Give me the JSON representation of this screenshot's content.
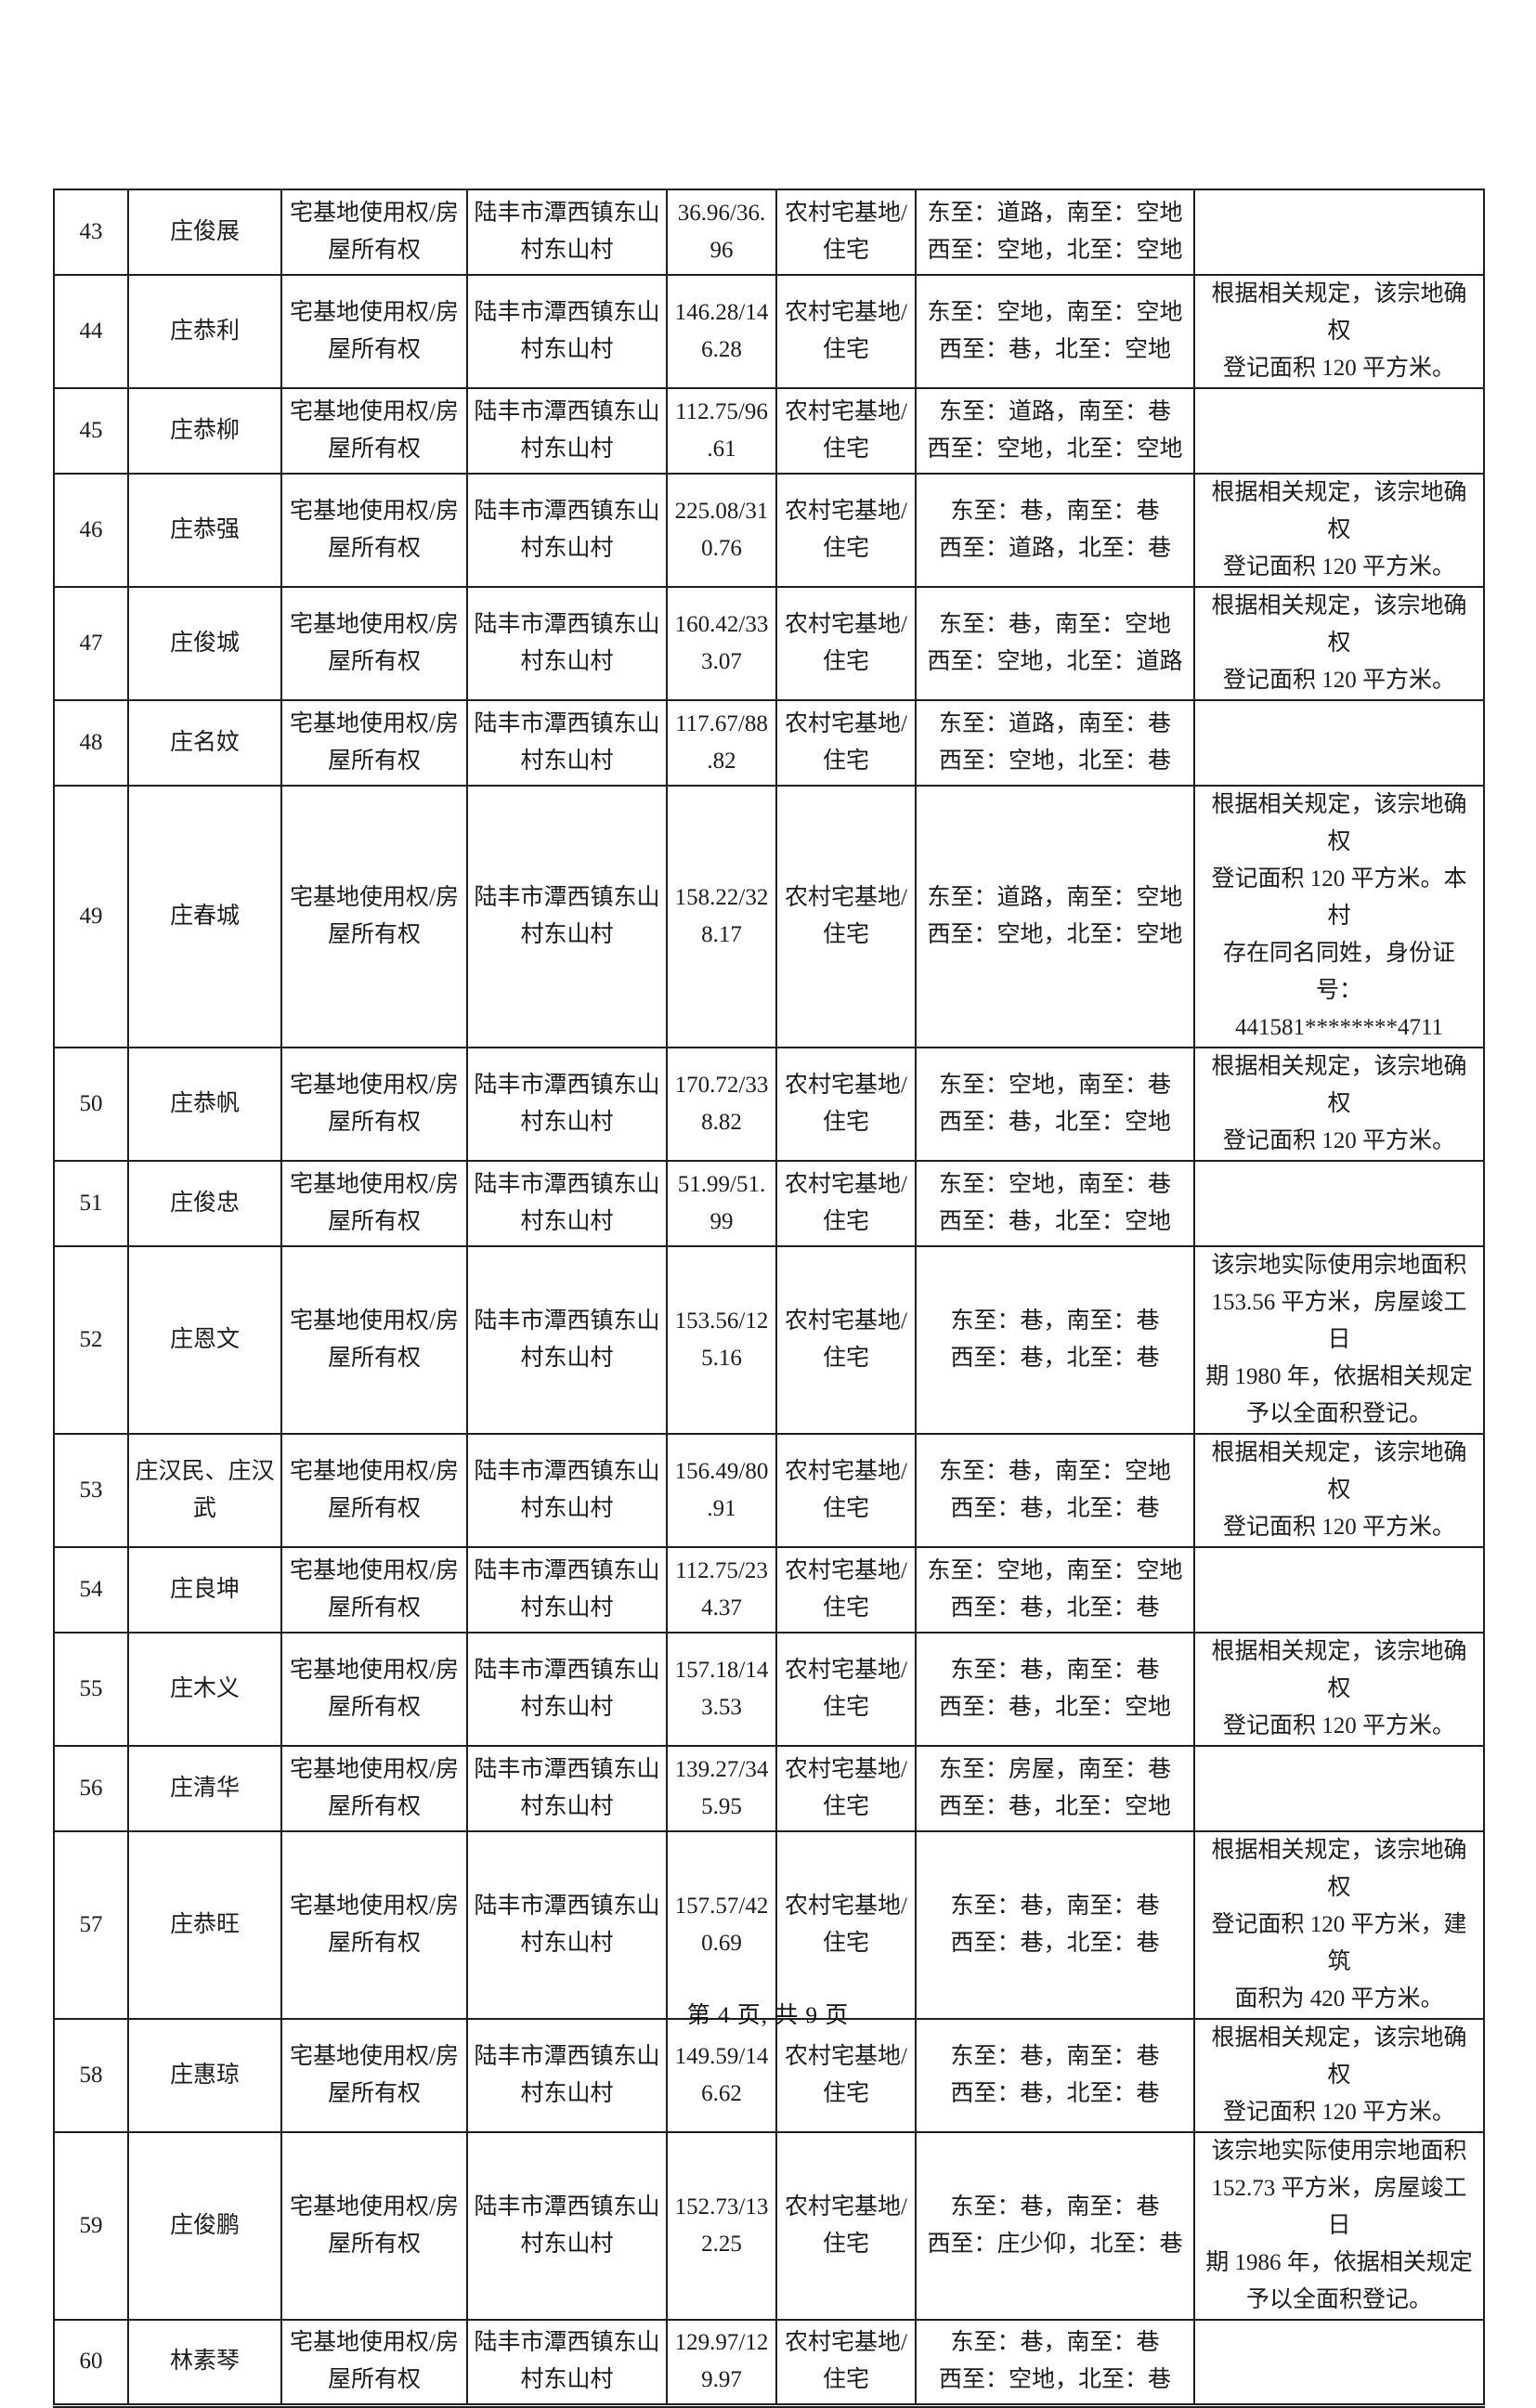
{
  "document": {
    "footer": "第 4 页, 共 9 页"
  },
  "rows": [
    {
      "no": "43",
      "name": "庄俊展",
      "right_type": "宅基地使用权/房\n屋所有权",
      "location": "陆丰市潭西镇东山\n村东山村",
      "area": "36.96/36.\n96",
      "land_use": "农村宅基地/\n住宅",
      "boundaries": "东至：道路，南至：空地\n西至：空地，北至：空地",
      "remark": ""
    },
    {
      "no": "44",
      "name": "庄恭利",
      "right_type": "宅基地使用权/房\n屋所有权",
      "location": "陆丰市潭西镇东山\n村东山村",
      "area": "146.28/14\n6.28",
      "land_use": "农村宅基地/\n住宅",
      "boundaries": "东至：空地，南至：空地\n西至：巷，北至：空地",
      "remark": "根据相关规定，该宗地确权\n登记面积 120 平方米。"
    },
    {
      "no": "45",
      "name": "庄恭柳",
      "right_type": "宅基地使用权/房\n屋所有权",
      "location": "陆丰市潭西镇东山\n村东山村",
      "area": "112.75/96\n.61",
      "land_use": "农村宅基地/\n住宅",
      "boundaries": "东至：道路，南至：巷\n西至：空地，北至：空地",
      "remark": ""
    },
    {
      "no": "46",
      "name": "庄恭强",
      "right_type": "宅基地使用权/房\n屋所有权",
      "location": "陆丰市潭西镇东山\n村东山村",
      "area": "225.08/31\n0.76",
      "land_use": "农村宅基地/\n住宅",
      "boundaries": "东至：巷，南至：巷\n西至：道路，北至：巷",
      "remark": "根据相关规定，该宗地确权\n登记面积 120 平方米。"
    },
    {
      "no": "47",
      "name": "庄俊城",
      "right_type": "宅基地使用权/房\n屋所有权",
      "location": "陆丰市潭西镇东山\n村东山村",
      "area": "160.42/33\n3.07",
      "land_use": "农村宅基地/\n住宅",
      "boundaries": "东至：巷，南至：空地\n西至：空地，北至：道路",
      "remark": "根据相关规定，该宗地确权\n登记面积 120 平方米。"
    },
    {
      "no": "48",
      "name": "庄名妏",
      "right_type": "宅基地使用权/房\n屋所有权",
      "location": "陆丰市潭西镇东山\n村东山村",
      "area": "117.67/88\n.82",
      "land_use": "农村宅基地/\n住宅",
      "boundaries": "东至：道路，南至：巷\n西至：空地，北至：巷",
      "remark": ""
    },
    {
      "no": "49",
      "name": "庄春城",
      "right_type": "宅基地使用权/房\n屋所有权",
      "location": "陆丰市潭西镇东山\n村东山村",
      "area": "158.22/32\n8.17",
      "land_use": "农村宅基地/\n住宅",
      "boundaries": "东至：道路，南至：空地\n西至：空地，北至：空地",
      "remark": "根据相关规定，该宗地确权\n登记面积 120 平方米。本村\n存在同名同姓，身份证号：\n441581********4711"
    },
    {
      "no": "50",
      "name": "庄恭帆",
      "right_type": "宅基地使用权/房\n屋所有权",
      "location": "陆丰市潭西镇东山\n村东山村",
      "area": "170.72/33\n8.82",
      "land_use": "农村宅基地/\n住宅",
      "boundaries": "东至：空地，南至：巷\n西至：巷，北至：空地",
      "remark": "根据相关规定，该宗地确权\n登记面积 120 平方米。"
    },
    {
      "no": "51",
      "name": "庄俊忠",
      "right_type": "宅基地使用权/房\n屋所有权",
      "location": "陆丰市潭西镇东山\n村东山村",
      "area": "51.99/51.\n99",
      "land_use": "农村宅基地/\n住宅",
      "boundaries": "东至：空地，南至：巷\n西至：巷，北至：空地",
      "remark": ""
    },
    {
      "no": "52",
      "name": "庄恩文",
      "right_type": "宅基地使用权/房\n屋所有权",
      "location": "陆丰市潭西镇东山\n村东山村",
      "area": "153.56/12\n5.16",
      "land_use": "农村宅基地/\n住宅",
      "boundaries": "东至：巷，南至：巷\n西至：巷，北至：巷",
      "remark": "该宗地实际使用宗地面积\n153.56 平方米，房屋竣工日\n期 1980 年，依据相关规定\n予以全面积登记。"
    },
    {
      "no": "53",
      "name": "庄汉民、庄汉\n武",
      "right_type": "宅基地使用权/房\n屋所有权",
      "location": "陆丰市潭西镇东山\n村东山村",
      "area": "156.49/80\n.91",
      "land_use": "农村宅基地/\n住宅",
      "boundaries": "东至：巷，南至：空地\n西至：巷，北至：巷",
      "remark": "根据相关规定，该宗地确权\n登记面积 120 平方米。"
    },
    {
      "no": "54",
      "name": "庄良坤",
      "right_type": "宅基地使用权/房\n屋所有权",
      "location": "陆丰市潭西镇东山\n村东山村",
      "area": "112.75/23\n4.37",
      "land_use": "农村宅基地/\n住宅",
      "boundaries": "东至：空地，南至：空地\n西至：巷，北至：巷",
      "remark": ""
    },
    {
      "no": "55",
      "name": "庄木义",
      "right_type": "宅基地使用权/房\n屋所有权",
      "location": "陆丰市潭西镇东山\n村东山村",
      "area": "157.18/14\n3.53",
      "land_use": "农村宅基地/\n住宅",
      "boundaries": "东至：巷，南至：巷\n西至：巷，北至：空地",
      "remark": "根据相关规定，该宗地确权\n登记面积 120 平方米。"
    },
    {
      "no": "56",
      "name": "庄清华",
      "right_type": "宅基地使用权/房\n屋所有权",
      "location": "陆丰市潭西镇东山\n村东山村",
      "area": "139.27/34\n5.95",
      "land_use": "农村宅基地/\n住宅",
      "boundaries": "东至：房屋，南至：巷\n西至：巷，北至：空地",
      "remark": ""
    },
    {
      "no": "57",
      "name": "庄恭旺",
      "right_type": "宅基地使用权/房\n屋所有权",
      "location": "陆丰市潭西镇东山\n村东山村",
      "area": "157.57/42\n0.69",
      "land_use": "农村宅基地/\n住宅",
      "boundaries": "东至：巷，南至：巷\n西至：巷，北至：巷",
      "remark": "根据相关规定，该宗地确权\n登记面积 120 平方米，建筑\n面积为 420 平方米。"
    },
    {
      "no": "58",
      "name": "庄惠琼",
      "right_type": "宅基地使用权/房\n屋所有权",
      "location": "陆丰市潭西镇东山\n村东山村",
      "area": "149.59/14\n6.62",
      "land_use": "农村宅基地/\n住宅",
      "boundaries": "东至：巷，南至：巷\n西至：巷，北至：巷",
      "remark": "根据相关规定，该宗地确权\n登记面积 120 平方米。"
    },
    {
      "no": "59",
      "name": "庄俊鹏",
      "right_type": "宅基地使用权/房\n屋所有权",
      "location": "陆丰市潭西镇东山\n村东山村",
      "area": "152.73/13\n2.25",
      "land_use": "农村宅基地/\n住宅",
      "boundaries": "东至：巷，南至：巷\n西至：庄少仰，北至：巷",
      "remark": "该宗地实际使用宗地面积\n152.73 平方米，房屋竣工日\n期 1986 年，依据相关规定\n予以全面积登记。"
    },
    {
      "no": "60",
      "name": "林素琴",
      "right_type": "宅基地使用权/房\n屋所有权",
      "location": "陆丰市潭西镇东山\n村东山村",
      "area": "129.97/12\n9.97",
      "land_use": "农村宅基地/\n住宅",
      "boundaries": "东至：巷，南至：巷\n西至：空地，北至：巷",
      "remark": ""
    }
  ]
}
